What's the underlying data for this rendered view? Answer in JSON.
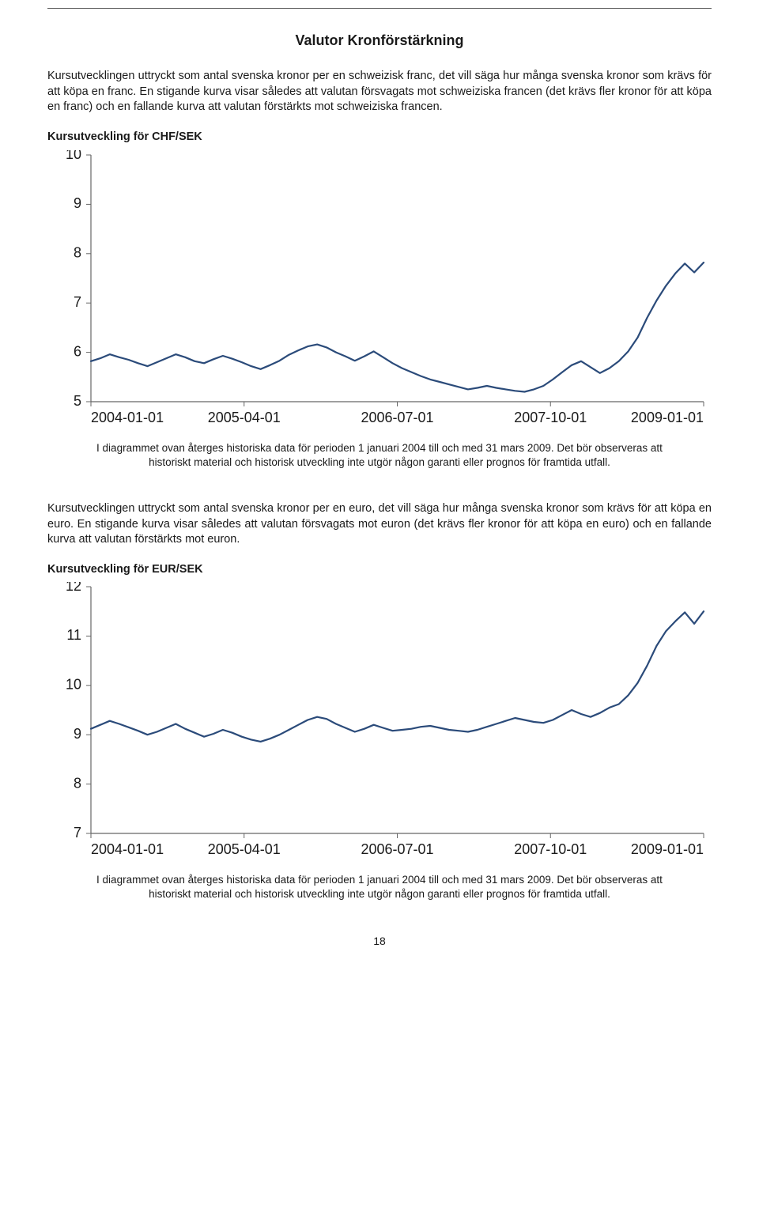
{
  "page_title": "Valutor Kronförstärkning",
  "intro_chf": "Kursutvecklingen uttryckt som antal svenska kronor per en schweizisk franc, det vill säga hur många svenska kronor som krävs för att köpa en franc. En stigande kurva visar således att valutan försvagats mot schweiziska francen (det krävs fler kronor för att köpa en franc) och en fallande kurva att valutan förstärkts mot schweiziska francen.",
  "chf": {
    "title": "Kursutveckling för CHF/SEK",
    "type": "line",
    "ylim": [
      5,
      10
    ],
    "ytick_step": 1,
    "yticks": [
      5,
      6,
      7,
      8,
      9,
      10
    ],
    "xticks": [
      "2004-01-01",
      "2005-04-01",
      "2006-07-01",
      "2007-10-01",
      "2009-01-01"
    ],
    "line_color": "#2b4b7a",
    "line_width": 2.2,
    "border_color": "#666666",
    "tick_color": "#666666",
    "background_color": "#ffffff",
    "tick_fontsize": 18,
    "values": [
      5.82,
      5.88,
      5.96,
      5.9,
      5.85,
      5.78,
      5.72,
      5.8,
      5.88,
      5.96,
      5.9,
      5.82,
      5.78,
      5.86,
      5.93,
      5.87,
      5.8,
      5.72,
      5.66,
      5.74,
      5.83,
      5.95,
      6.04,
      6.12,
      6.16,
      6.1,
      6.0,
      5.92,
      5.83,
      5.92,
      6.02,
      5.9,
      5.78,
      5.68,
      5.6,
      5.52,
      5.45,
      5.4,
      5.35,
      5.3,
      5.25,
      5.28,
      5.32,
      5.28,
      5.25,
      5.22,
      5.2,
      5.25,
      5.32,
      5.45,
      5.6,
      5.74,
      5.82,
      5.7,
      5.58,
      5.68,
      5.82,
      6.02,
      6.3,
      6.7,
      7.05,
      7.35,
      7.6,
      7.8,
      7.62,
      7.82
    ]
  },
  "chf_caption": "I diagrammet ovan återges historiska data för perioden 1 januari 2004 till och med 31 mars 2009. Det bör observeras att historiskt material och historisk utveckling inte utgör någon garanti eller prognos för framtida utfall.",
  "intro_eur": "Kursutvecklingen uttryckt som antal svenska kronor per en euro, det vill säga hur många svenska kronor som krävs för att köpa en euro. En stigande kurva visar således att valutan försvagats mot euron (det krävs fler kronor för att köpa en euro) och en fallande kurva att valutan förstärkts mot euron.",
  "eur": {
    "title": "Kursutveckling för EUR/SEK",
    "type": "line",
    "ylim": [
      7,
      12
    ],
    "ytick_step": 1,
    "yticks": [
      7,
      8,
      9,
      10,
      11,
      12
    ],
    "xticks": [
      "2004-01-01",
      "2005-04-01",
      "2006-07-01",
      "2007-10-01",
      "2009-01-01"
    ],
    "line_color": "#2b4b7a",
    "line_width": 2.2,
    "border_color": "#666666",
    "tick_color": "#666666",
    "background_color": "#ffffff",
    "tick_fontsize": 18,
    "values": [
      9.12,
      9.2,
      9.28,
      9.22,
      9.15,
      9.08,
      9.0,
      9.06,
      9.14,
      9.22,
      9.12,
      9.04,
      8.96,
      9.02,
      9.1,
      9.04,
      8.96,
      8.9,
      8.86,
      8.92,
      9.0,
      9.1,
      9.2,
      9.3,
      9.36,
      9.32,
      9.22,
      9.14,
      9.06,
      9.12,
      9.2,
      9.14,
      9.08,
      9.1,
      9.12,
      9.16,
      9.18,
      9.14,
      9.1,
      9.08,
      9.06,
      9.1,
      9.16,
      9.22,
      9.28,
      9.34,
      9.3,
      9.26,
      9.24,
      9.3,
      9.4,
      9.5,
      9.42,
      9.36,
      9.44,
      9.55,
      9.62,
      9.8,
      10.05,
      10.4,
      10.8,
      11.1,
      11.3,
      11.48,
      11.25,
      11.5
    ]
  },
  "eur_caption": "I diagrammet ovan återges historiska data för perioden 1 januari 2004 till och med 31 mars 2009. Det bör observeras att historiskt material och historisk utveckling inte utgör någon garanti eller prognos för framtida utfall.",
  "page_number": "18"
}
